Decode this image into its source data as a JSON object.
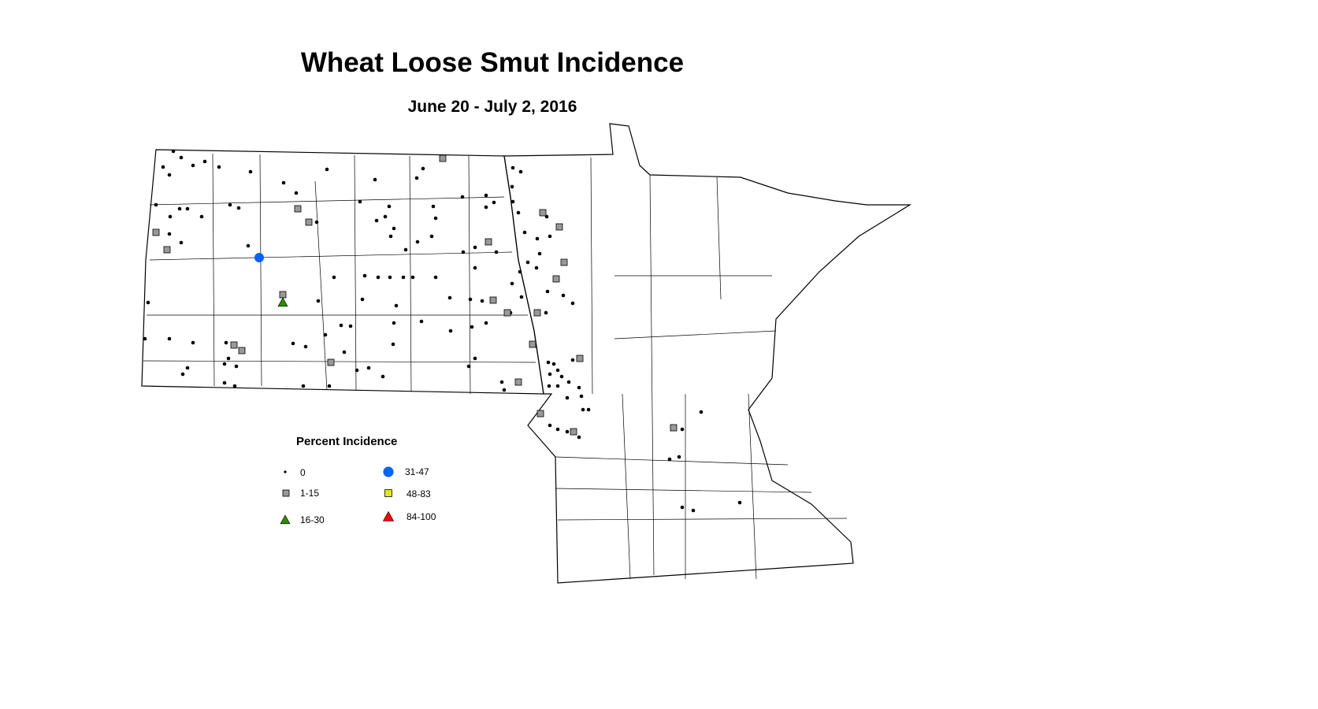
{
  "title": "Wheat Loose Smut Incidence",
  "subtitle": "June 20 - July 2, 2016",
  "legend": {
    "title": "Percent Incidence",
    "classes": [
      {
        "label": "0",
        "symbol": "small-dot",
        "color": "#000000"
      },
      {
        "label": "1-15",
        "symbol": "square",
        "color": "#999999"
      },
      {
        "label": "16-30",
        "symbol": "triangle",
        "color": "#2e8b00"
      },
      {
        "label": "31-47",
        "symbol": "circle",
        "color": "#0064ff"
      },
      {
        "label": "48-83",
        "symbol": "square",
        "color": "#e8e800"
      },
      {
        "label": "84-100",
        "symbol": "triangle",
        "color": "#ff0000"
      }
    ]
  }
}
